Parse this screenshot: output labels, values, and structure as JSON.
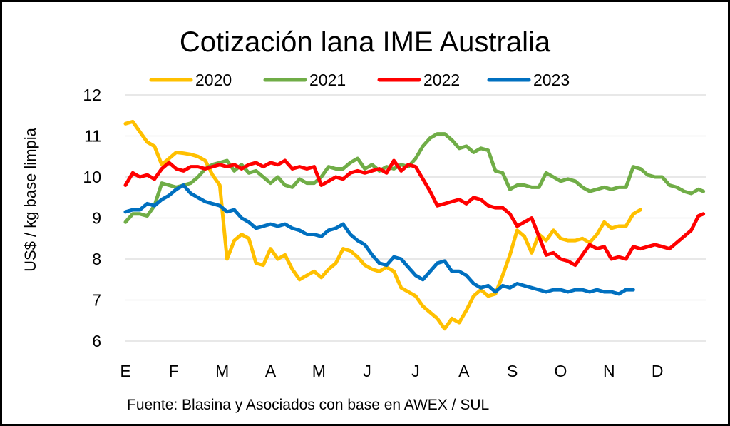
{
  "chart_data": {
    "type": "line",
    "title": "Cotización lana IME Australia",
    "ylabel": "US$ / kg base limpia",
    "ylim": [
      6,
      12
    ],
    "yticks": [
      "6",
      "7",
      "8",
      "9",
      "10",
      "11",
      "12"
    ],
    "grid": true,
    "legend_position": "top",
    "months": [
      "E",
      "F",
      "M",
      "A",
      "M",
      "J",
      "J",
      "A",
      "S",
      "O",
      "N",
      "D"
    ],
    "source": "Fuente: Blasina y Asociados con base en AWEX / SUL",
    "series": [
      {
        "name": "2020",
        "color": "#FFC000",
        "x": [
          0,
          0.15,
          0.3,
          0.45,
          0.6,
          0.75,
          0.9,
          1.05,
          1.2,
          1.35,
          1.5,
          1.65,
          1.8,
          1.95,
          2.1,
          2.25,
          2.4,
          2.55,
          2.7,
          2.85,
          3.0,
          3.15,
          3.3,
          3.45,
          3.6,
          3.75,
          3.9,
          4.05,
          4.2,
          4.35,
          4.5,
          4.65,
          4.8,
          4.95,
          5.1,
          5.25,
          5.4,
          5.55,
          5.7,
          5.85,
          6.0,
          6.15,
          6.3,
          6.45,
          6.6,
          6.75,
          6.9,
          7.05,
          7.2,
          7.35,
          7.5,
          7.65,
          7.8,
          7.95,
          8.1,
          8.25,
          8.4,
          8.55,
          8.7,
          8.85,
          9.0,
          9.15,
          9.3,
          9.45,
          9.6,
          9.75,
          9.9,
          10.05,
          10.2,
          10.35,
          10.5,
          10.65
        ],
        "values": [
          11.3,
          11.35,
          11.1,
          10.85,
          10.75,
          10.3,
          10.45,
          10.6,
          10.58,
          10.55,
          10.5,
          10.4,
          10.05,
          9.8,
          8.0,
          8.45,
          8.6,
          8.5,
          7.9,
          7.85,
          8.25,
          8.0,
          8.1,
          7.75,
          7.5,
          7.6,
          7.7,
          7.55,
          7.75,
          7.9,
          8.25,
          8.2,
          8.05,
          7.85,
          7.75,
          7.7,
          7.8,
          7.7,
          7.3,
          7.2,
          7.1,
          6.85,
          6.7,
          6.55,
          6.3,
          6.55,
          6.45,
          6.75,
          7.1,
          7.25,
          7.1,
          7.15,
          7.6,
          8.1,
          8.7,
          8.55,
          8.15,
          8.6,
          8.45,
          8.7,
          8.5,
          8.45,
          8.45,
          8.5,
          8.4,
          8.6,
          8.9,
          8.75,
          8.8,
          8.8,
          9.1,
          9.2
        ]
      },
      {
        "name": "2021",
        "color": "#70AD47",
        "x": [
          0,
          0.15,
          0.3,
          0.45,
          0.6,
          0.75,
          0.9,
          1.05,
          1.2,
          1.35,
          1.5,
          1.65,
          1.8,
          1.95,
          2.1,
          2.25,
          2.4,
          2.55,
          2.7,
          2.85,
          3.0,
          3.15,
          3.3,
          3.45,
          3.6,
          3.75,
          3.9,
          4.05,
          4.2,
          4.35,
          4.5,
          4.65,
          4.8,
          4.95,
          5.1,
          5.25,
          5.4,
          5.55,
          5.7,
          5.85,
          6.0,
          6.15,
          6.3,
          6.45,
          6.6,
          6.75,
          6.9,
          7.05,
          7.2,
          7.35,
          7.5,
          7.65,
          7.8,
          7.95,
          8.1,
          8.25,
          8.4,
          8.55,
          8.7,
          8.85,
          9.0,
          9.15,
          9.3,
          9.45,
          9.6,
          9.75,
          9.9,
          10.05,
          10.2,
          10.35,
          10.5,
          10.65,
          10.8,
          10.95,
          11.1,
          11.25,
          11.4,
          11.55,
          11.7,
          11.85,
          11.95
        ],
        "values": [
          8.9,
          9.1,
          9.1,
          9.05,
          9.3,
          9.85,
          9.8,
          9.75,
          9.8,
          9.85,
          10.0,
          10.2,
          10.3,
          10.35,
          10.4,
          10.15,
          10.3,
          10.1,
          10.15,
          10.0,
          9.85,
          10.0,
          9.8,
          9.75,
          9.95,
          9.85,
          9.85,
          10.0,
          10.25,
          10.2,
          10.2,
          10.35,
          10.45,
          10.2,
          10.3,
          10.15,
          10.25,
          10.2,
          10.3,
          10.25,
          10.45,
          10.75,
          10.95,
          11.05,
          11.05,
          10.9,
          10.7,
          10.75,
          10.6,
          10.7,
          10.65,
          10.15,
          10.1,
          9.7,
          9.8,
          9.8,
          9.75,
          9.75,
          10.1,
          10.0,
          9.9,
          9.95,
          9.9,
          9.75,
          9.65,
          9.7,
          9.75,
          9.7,
          9.75,
          9.75,
          10.25,
          10.2,
          10.05,
          10.0,
          10.0,
          9.8,
          9.75,
          9.65,
          9.6,
          9.7,
          9.65
        ]
      },
      {
        "name": "2022",
        "color": "#FF0000",
        "x": [
          0,
          0.15,
          0.3,
          0.45,
          0.6,
          0.75,
          0.9,
          1.05,
          1.2,
          1.35,
          1.5,
          1.65,
          1.8,
          1.95,
          2.1,
          2.25,
          2.4,
          2.55,
          2.7,
          2.85,
          3.0,
          3.15,
          3.3,
          3.45,
          3.6,
          3.75,
          3.9,
          4.05,
          4.2,
          4.35,
          4.5,
          4.65,
          4.8,
          4.95,
          5.1,
          5.25,
          5.4,
          5.55,
          5.7,
          5.85,
          6.0,
          6.15,
          6.3,
          6.45,
          6.6,
          6.75,
          6.9,
          7.05,
          7.2,
          7.35,
          7.5,
          7.65,
          7.8,
          7.95,
          8.1,
          8.25,
          8.4,
          8.55,
          8.7,
          8.85,
          9.0,
          9.15,
          9.3,
          9.45,
          9.6,
          9.75,
          9.9,
          10.05,
          10.2,
          10.35,
          10.5,
          10.65,
          10.8,
          10.95,
          11.1,
          11.25,
          11.4,
          11.55,
          11.7,
          11.85,
          11.95
        ],
        "values": [
          9.8,
          10.1,
          10.0,
          10.05,
          9.95,
          10.2,
          10.35,
          10.2,
          10.15,
          10.25,
          10.25,
          10.2,
          10.25,
          10.3,
          10.25,
          10.3,
          10.2,
          10.3,
          10.35,
          10.25,
          10.35,
          10.3,
          10.4,
          10.2,
          10.25,
          10.2,
          10.25,
          9.8,
          9.9,
          10.0,
          9.95,
          10.1,
          10.15,
          10.1,
          10.15,
          10.2,
          10.1,
          10.4,
          10.15,
          10.3,
          10.25,
          9.95,
          9.65,
          9.3,
          9.35,
          9.4,
          9.45,
          9.35,
          9.5,
          9.45,
          9.3,
          9.25,
          9.25,
          9.1,
          8.8,
          8.9,
          9.0,
          8.55,
          8.1,
          8.15,
          8.0,
          7.95,
          7.85,
          8.1,
          8.35,
          8.25,
          8.3,
          8.0,
          8.05,
          8.0,
          8.3,
          8.25,
          8.3,
          8.35,
          8.3,
          8.25,
          8.4,
          8.55,
          8.7,
          9.05,
          9.1
        ]
      },
      {
        "name": "2023",
        "color": "#0070C0",
        "x": [
          0,
          0.15,
          0.3,
          0.45,
          0.6,
          0.75,
          0.9,
          1.05,
          1.2,
          1.35,
          1.5,
          1.65,
          1.8,
          1.95,
          2.1,
          2.25,
          2.4,
          2.55,
          2.7,
          2.85,
          3.0,
          3.15,
          3.3,
          3.45,
          3.6,
          3.75,
          3.9,
          4.05,
          4.2,
          4.35,
          4.5,
          4.65,
          4.8,
          4.95,
          5.1,
          5.25,
          5.4,
          5.55,
          5.7,
          5.85,
          6.0,
          6.15,
          6.3,
          6.45,
          6.6,
          6.75,
          6.9,
          7.05,
          7.2,
          7.35,
          7.5,
          7.65,
          7.8,
          7.95,
          8.1,
          8.25,
          8.4,
          8.55,
          8.7,
          8.85,
          9.0,
          9.15,
          9.3,
          9.45,
          9.6,
          9.75,
          9.9,
          10.05,
          10.2,
          10.35,
          10.5
        ],
        "values": [
          9.15,
          9.2,
          9.2,
          9.35,
          9.3,
          9.45,
          9.55,
          9.7,
          9.8,
          9.6,
          9.5,
          9.4,
          9.35,
          9.3,
          9.15,
          9.2,
          9.0,
          8.9,
          8.75,
          8.8,
          8.85,
          8.8,
          8.85,
          8.75,
          8.7,
          8.6,
          8.6,
          8.55,
          8.7,
          8.75,
          8.85,
          8.6,
          8.45,
          8.35,
          8.1,
          7.9,
          7.85,
          8.05,
          8.0,
          7.8,
          7.6,
          7.5,
          7.7,
          7.9,
          7.95,
          7.7,
          7.7,
          7.6,
          7.4,
          7.3,
          7.35,
          7.2,
          7.35,
          7.3,
          7.4,
          7.35,
          7.3,
          7.25,
          7.2,
          7.25,
          7.25,
          7.2,
          7.25,
          7.25,
          7.2,
          7.25,
          7.2,
          7.2,
          7.15,
          7.25,
          7.25
        ]
      }
    ]
  }
}
